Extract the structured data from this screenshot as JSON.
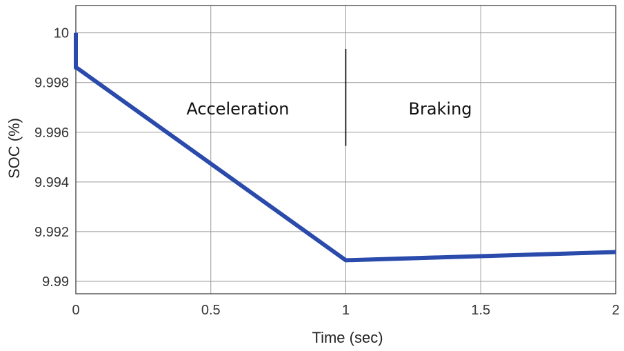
{
  "chart_data": {
    "type": "line",
    "title": "",
    "xlabel": "Time (sec)",
    "ylabel": "SOC (%)",
    "xlim": [
      0,
      2
    ],
    "ylim": [
      9.9895,
      10.0011
    ],
    "x_ticks": [
      0,
      0.5,
      1,
      1.5,
      2
    ],
    "x_tick_labels": [
      "0",
      "0.5",
      "1",
      "1.5",
      "2"
    ],
    "y_ticks": [
      9.99,
      9.992,
      9.994,
      9.996,
      9.998,
      10
    ],
    "y_tick_labels": [
      "9.99",
      "9.992",
      "9.994",
      "9.996",
      "9.998",
      "10"
    ],
    "grid": true,
    "series": [
      {
        "name": "SOC",
        "color": "#2a4bab",
        "x": [
          0,
          0,
          0.005,
          1.0,
          2.0
        ],
        "y": [
          10.0,
          9.9986,
          9.99858,
          9.99085,
          9.99118
        ]
      }
    ],
    "divider": {
      "x": 1.0,
      "y_start": 9.99935,
      "y_end": 9.99545,
      "color": "#000000"
    },
    "annotations": [
      {
        "text": "Acceleration",
        "x": 0.6,
        "y": 9.99672
      },
      {
        "text": "Braking",
        "x": 1.35,
        "y": 9.99672
      }
    ]
  }
}
